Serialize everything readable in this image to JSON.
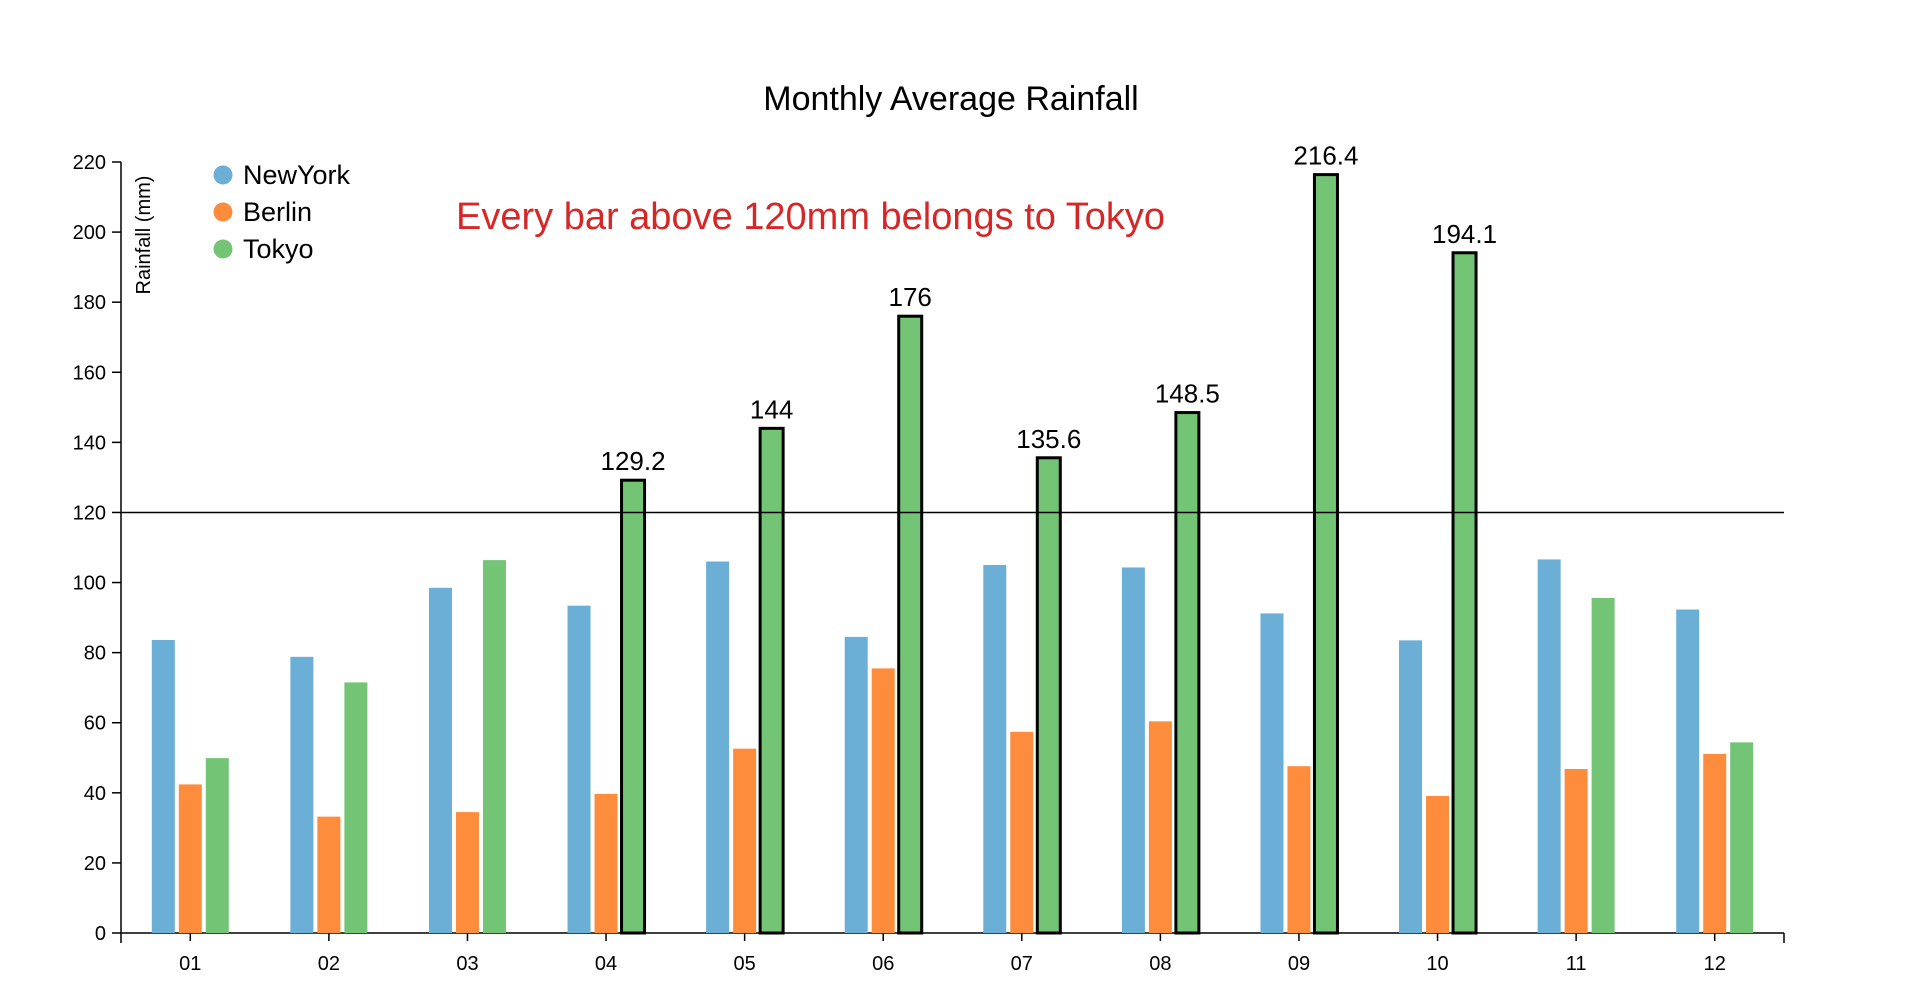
{
  "chart_data": {
    "type": "bar",
    "title": "Monthly Average Rainfall",
    "xlabel": "",
    "ylabel": "Rainfall (mm)",
    "ylim": [
      0,
      220
    ],
    "yticks": [
      0,
      20,
      40,
      60,
      80,
      100,
      120,
      140,
      160,
      180,
      200,
      220
    ],
    "categories": [
      "01",
      "02",
      "03",
      "04",
      "05",
      "06",
      "07",
      "08",
      "09",
      "10",
      "11",
      "12"
    ],
    "series": [
      {
        "name": "NewYork",
        "color": "#6baed6",
        "values": [
          83.6,
          78.8,
          98.5,
          93.4,
          106.0,
          84.5,
          105.0,
          104.3,
          91.2,
          83.5,
          106.6,
          92.3
        ]
      },
      {
        "name": "Berlin",
        "color": "#fd8d3c",
        "values": [
          42.4,
          33.2,
          34.5,
          39.7,
          52.6,
          75.5,
          57.4,
          60.4,
          47.6,
          39.1,
          46.8,
          51.1
        ]
      },
      {
        "name": "Tokyo",
        "color": "#74c476",
        "values": [
          49.9,
          71.5,
          106.4,
          129.2,
          144.0,
          176.0,
          135.6,
          148.5,
          216.4,
          194.1,
          95.6,
          54.4
        ]
      }
    ],
    "reference_line": {
      "value": 120,
      "color": "#000000"
    },
    "highlight": {
      "threshold": 120,
      "series": "Tokyo",
      "stroke": "#000000"
    },
    "data_labels": [
      {
        "category": "04",
        "text": "129.2"
      },
      {
        "category": "05",
        "text": "144"
      },
      {
        "category": "06",
        "text": "176"
      },
      {
        "category": "07",
        "text": "135.6"
      },
      {
        "category": "08",
        "text": "148.5"
      },
      {
        "category": "09",
        "text": "216.4"
      },
      {
        "category": "10",
        "text": "194.1"
      }
    ],
    "annotation": {
      "text": "Every bar above 120mm belongs to Tokyo",
      "color": "#d62728"
    },
    "legend": {
      "placement": "top-left",
      "entries": [
        "NewYork",
        "Berlin",
        "Tokyo"
      ]
    },
    "grid": false
  }
}
